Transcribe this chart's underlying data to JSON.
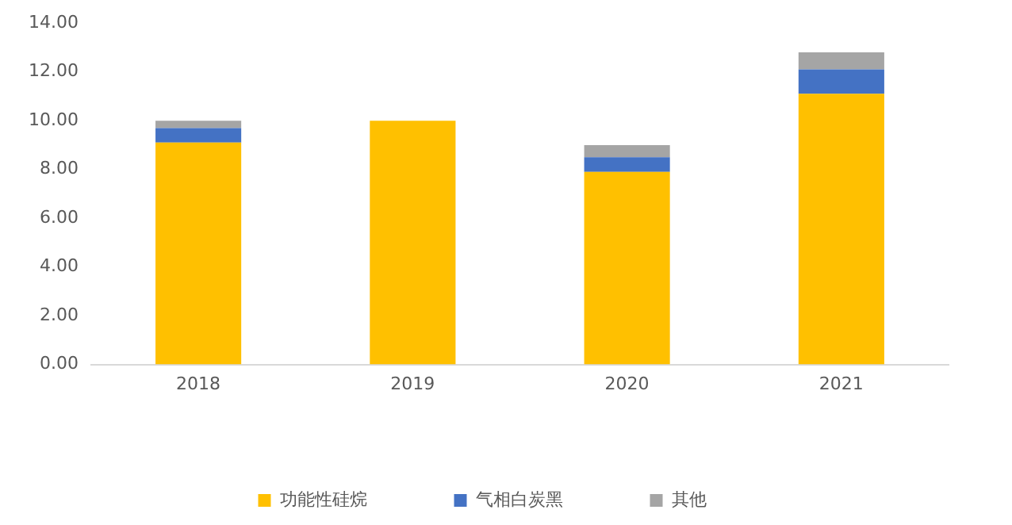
{
  "chart_data": {
    "type": "bar",
    "stacked": true,
    "categories": [
      "2018",
      "2019",
      "2020",
      "2021"
    ],
    "series": [
      {
        "name": "功能性硅烷",
        "color": "#ffc000",
        "values": [
          9.1,
          10.0,
          7.9,
          11.1
        ]
      },
      {
        "name": "气相白炭黑",
        "color": "#4472c4",
        "values": [
          0.6,
          null,
          0.6,
          1.0
        ]
      },
      {
        "name": "其他",
        "color": "#a5a5a5",
        "values": [
          0.3,
          null,
          0.5,
          0.7
        ]
      }
    ],
    "ylim": [
      0,
      14
    ],
    "yticks": [
      {
        "value": 0,
        "label": "0.00"
      },
      {
        "value": 2,
        "label": "2.00"
      },
      {
        "value": 4,
        "label": "4.00"
      },
      {
        "value": 6,
        "label": "6.00"
      },
      {
        "value": 8,
        "label": "8.00"
      },
      {
        "value": 10,
        "label": "10.00"
      },
      {
        "value": 12,
        "label": "12.00"
      },
      {
        "value": 14,
        "label": "14.00"
      }
    ],
    "grid": false,
    "legend": "bottom"
  }
}
